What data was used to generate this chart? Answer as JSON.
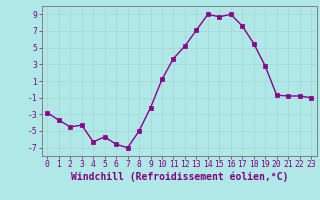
{
  "xlabel": "Windchill (Refroidissement éolien,°C)",
  "x": [
    0,
    1,
    2,
    3,
    4,
    5,
    6,
    7,
    8,
    9,
    10,
    11,
    12,
    13,
    14,
    15,
    16,
    17,
    18,
    19,
    20,
    21,
    22,
    23
  ],
  "y": [
    -2.8,
    -3.7,
    -4.5,
    -4.3,
    -6.3,
    -5.7,
    -6.6,
    -7.0,
    -5.0,
    -2.2,
    1.2,
    3.7,
    5.2,
    7.1,
    9.0,
    8.7,
    9.0,
    7.6,
    5.5,
    2.8,
    -0.7,
    -0.8,
    -0.8,
    -1.0
  ],
  "line_color": "#8b008b",
  "marker": "s",
  "marker_size": 2.2,
  "bg_color": "#b0e8e8",
  "grid_color": "#d0f0f0",
  "ylim": [
    -8,
    10
  ],
  "xlim": [
    -0.5,
    23.5
  ],
  "yticks": [
    -7,
    -5,
    -3,
    -1,
    1,
    3,
    5,
    7,
    9
  ],
  "xticks": [
    0,
    1,
    2,
    3,
    4,
    5,
    6,
    7,
    8,
    9,
    10,
    11,
    12,
    13,
    14,
    15,
    16,
    17,
    18,
    19,
    20,
    21,
    22,
    23
  ],
  "tick_color": "#800080",
  "axis_color": "#808080",
  "tick_fontsize": 5.8,
  "xlabel_fontsize": 7.0,
  "linewidth": 1.0
}
